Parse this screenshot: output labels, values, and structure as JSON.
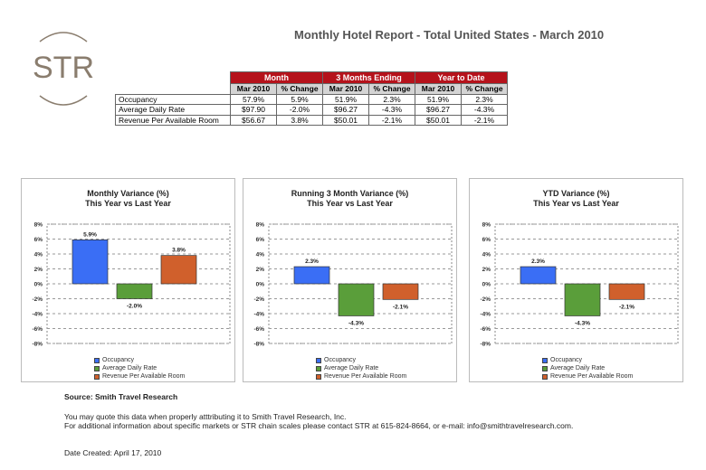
{
  "header": {
    "logo_text": "STR",
    "title": "Monthly Hotel Report - Total United States - March 2010"
  },
  "table": {
    "groups": [
      "Month",
      "3 Months Ending",
      "Year to Date"
    ],
    "subheaders": [
      "Mar 2010",
      "% Change",
      "Mar 2010",
      "% Change",
      "Mar 2010",
      "% Change"
    ],
    "rows": [
      {
        "label": "Occupancy",
        "values": [
          "57.9%",
          "5.9%",
          "51.9%",
          "2.3%",
          "51.9%",
          "2.3%"
        ]
      },
      {
        "label": "Average Daily Rate",
        "values": [
          "$97.90",
          "-2.0%",
          "$96.27",
          "-4.3%",
          "$96.27",
          "-4.3%"
        ]
      },
      {
        "label": "Revenue Per Available Room",
        "values": [
          "$56.67",
          "3.8%",
          "$50.01",
          "-2.1%",
          "$50.01",
          "-2.1%"
        ]
      }
    ]
  },
  "chart_data": [
    {
      "type": "bar",
      "title": "Monthly Variance (%)",
      "subtitle": "This Year vs Last Year",
      "categories": [
        "Occupancy",
        "Average Daily Rate",
        "Revenue Per Available Room"
      ],
      "values": [
        5.9,
        -2.0,
        3.8
      ],
      "labels": [
        "5.9%",
        "-2.0%",
        "3.8%"
      ],
      "ylim": [
        -8,
        8
      ],
      "yticks": [
        "8%",
        "6%",
        "4%",
        "2%",
        "0%",
        "-2%",
        "-4%",
        "-6%",
        "-8%"
      ],
      "legend": "bottom"
    },
    {
      "type": "bar",
      "title": "Running 3 Month Variance (%)",
      "subtitle": "This Year vs Last Year",
      "categories": [
        "Occupancy",
        "Average Daily Rate",
        "Revenue Per Available Room"
      ],
      "values": [
        2.3,
        -4.3,
        -2.1
      ],
      "labels": [
        "2.3%",
        "-4.3%",
        "-2.1%"
      ],
      "ylim": [
        -8,
        8
      ],
      "yticks": [
        "8%",
        "6%",
        "4%",
        "2%",
        "0%",
        "-2%",
        "-4%",
        "-6%",
        "-8%"
      ],
      "legend": "bottom"
    },
    {
      "type": "bar",
      "title": "YTD Variance (%)",
      "subtitle": "This Year vs Last Year",
      "categories": [
        "Occupancy",
        "Average Daily Rate",
        "Revenue Per Available Room"
      ],
      "values": [
        2.3,
        -4.3,
        -2.1
      ],
      "labels": [
        "2.3%",
        "-4.3%",
        "-2.1%"
      ],
      "ylim": [
        -8,
        8
      ],
      "yticks": [
        "8%",
        "6%",
        "4%",
        "2%",
        "0%",
        "-2%",
        "-4%",
        "-6%",
        "-8%"
      ],
      "legend": "bottom"
    }
  ],
  "colors": {
    "occupancy": "#3a6ef5",
    "adr": "#5a9e3a",
    "revpar": "#d0602c",
    "header_red": "#b5121b"
  },
  "footer": {
    "source": "Source: Smith Travel Research",
    "line1": "You may quote this data when properly atttributing it to Smith Travel Research, Inc.",
    "line2": "For additional information about specific markets or STR chain scales please contact STR at 615-824-8664, or e-mail: info@smithtravelresearch.com.",
    "date": "Date Created: April 17, 2010"
  }
}
